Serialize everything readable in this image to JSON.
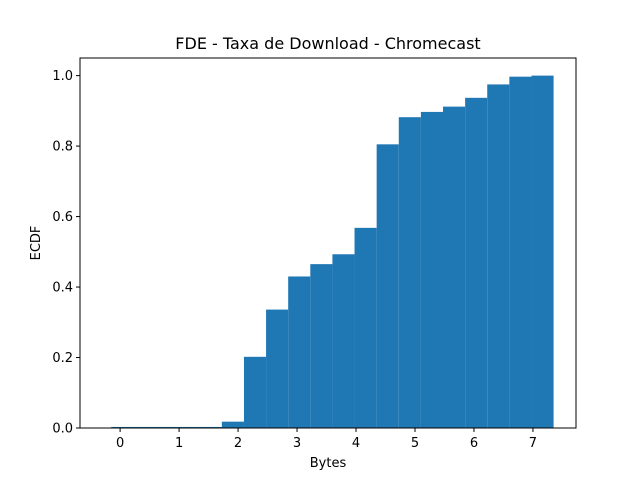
{
  "chart_data": {
    "type": "bar",
    "title": "FDE - Taxa de Download - Chromecast",
    "xlabel": "Bytes",
    "ylabel": "ECDF",
    "xlim": [
      -0.68,
      7.73
    ],
    "ylim": [
      0,
      1.05
    ],
    "xticks": [
      0,
      1,
      2,
      3,
      4,
      5,
      6,
      7
    ],
    "yticks": [
      0.0,
      0.2,
      0.4,
      0.6,
      0.8,
      1.0
    ],
    "ytick_labels": [
      "0.0",
      "0.2",
      "0.4",
      "0.6",
      "0.8",
      "1.0"
    ],
    "grid": false,
    "legend": "none",
    "bar_color": "#1f77b4",
    "bins": [
      {
        "x0": -0.15,
        "x1": 0.225,
        "y": 0.003
      },
      {
        "x0": 0.225,
        "x1": 0.6,
        "y": 0.003
      },
      {
        "x0": 0.6,
        "x1": 0.975,
        "y": 0.003
      },
      {
        "x0": 0.975,
        "x1": 1.35,
        "y": 0.003
      },
      {
        "x0": 1.35,
        "x1": 1.725,
        "y": 0.003
      },
      {
        "x0": 1.725,
        "x1": 2.1,
        "y": 0.018
      },
      {
        "x0": 2.1,
        "x1": 2.475,
        "y": 0.202
      },
      {
        "x0": 2.475,
        "x1": 2.85,
        "y": 0.336
      },
      {
        "x0": 2.85,
        "x1": 3.225,
        "y": 0.43
      },
      {
        "x0": 3.225,
        "x1": 3.6,
        "y": 0.465
      },
      {
        "x0": 3.6,
        "x1": 3.975,
        "y": 0.493
      },
      {
        "x0": 3.975,
        "x1": 4.35,
        "y": 0.568
      },
      {
        "x0": 4.35,
        "x1": 4.725,
        "y": 0.805
      },
      {
        "x0": 4.725,
        "x1": 5.1,
        "y": 0.882
      },
      {
        "x0": 5.1,
        "x1": 5.475,
        "y": 0.897
      },
      {
        "x0": 5.475,
        "x1": 5.85,
        "y": 0.912
      },
      {
        "x0": 5.85,
        "x1": 6.225,
        "y": 0.937
      },
      {
        "x0": 6.225,
        "x1": 6.6,
        "y": 0.975
      },
      {
        "x0": 6.6,
        "x1": 6.975,
        "y": 0.997
      },
      {
        "x0": 6.975,
        "x1": 7.35,
        "y": 1.0
      }
    ]
  }
}
